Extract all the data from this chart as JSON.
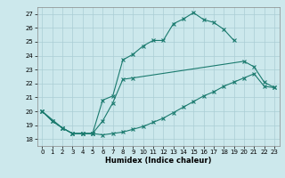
{
  "xlabel": "Humidex (Indice chaleur)",
  "bg_color": "#cce8ec",
  "line_color": "#1a7a6e",
  "grid_color": "#aacdd4",
  "xlim": [
    -0.5,
    23.5
  ],
  "ylim": [
    17.5,
    27.5
  ],
  "xticks": [
    0,
    1,
    2,
    3,
    4,
    5,
    6,
    7,
    8,
    9,
    10,
    11,
    12,
    13,
    14,
    15,
    16,
    17,
    18,
    19,
    20,
    21,
    22,
    23
  ],
  "yticks": [
    18,
    19,
    20,
    21,
    22,
    23,
    24,
    25,
    26,
    27
  ],
  "line1_x": [
    0,
    1,
    2,
    3,
    4,
    5,
    6,
    7,
    8,
    9,
    10,
    11,
    12,
    13,
    14,
    15,
    16,
    17,
    18,
    19
  ],
  "line1_y": [
    20.0,
    19.3,
    18.8,
    18.4,
    18.4,
    18.4,
    20.8,
    21.1,
    23.7,
    24.1,
    24.7,
    25.1,
    25.1,
    26.3,
    26.65,
    27.1,
    26.6,
    26.4,
    25.9,
    25.1
  ],
  "line2_x": [
    0,
    1,
    2,
    3,
    4,
    5,
    6,
    7,
    8,
    9,
    20,
    21,
    22,
    23
  ],
  "line2_y": [
    20.0,
    19.3,
    18.8,
    18.4,
    18.4,
    18.4,
    19.3,
    20.6,
    22.3,
    22.4,
    23.6,
    23.2,
    22.1,
    21.7
  ],
  "line3_x": [
    0,
    2,
    3,
    4,
    5,
    6,
    7,
    8,
    9,
    10,
    11,
    12,
    13,
    14,
    15,
    16,
    17,
    18,
    19,
    20,
    21,
    22,
    23
  ],
  "line3_y": [
    20.0,
    18.8,
    18.4,
    18.4,
    18.4,
    18.3,
    18.4,
    18.5,
    18.7,
    18.9,
    19.2,
    19.5,
    19.9,
    20.3,
    20.7,
    21.1,
    21.4,
    21.8,
    22.1,
    22.4,
    22.7,
    21.8,
    21.7
  ]
}
